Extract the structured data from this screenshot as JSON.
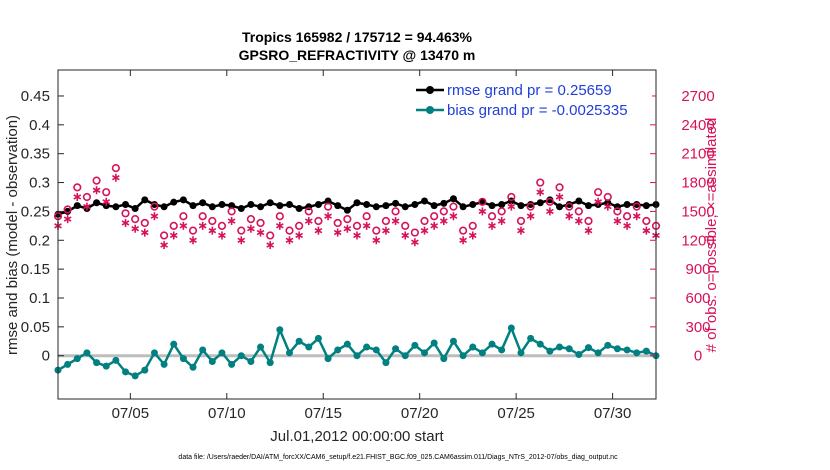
{
  "chart_data": {
    "type": "line",
    "title": [
      "Tropics 165982 / 175712 = 94.463%",
      "GPSRO_REFRACTIVITY @ 13470 m"
    ],
    "xlabel": "Jul.01,2012 00:00:00 start",
    "ylabel_left": "rmse and bias (model - observation)",
    "ylabel_right": "# of obs: o=possible; ×=assimilated",
    "footnote": "data file: /Users/raeder/DAI/ATM_forcXX/CAM6_setup/f.e21.FHIST_BGC.f09_025.CAM6assim.011/Diags_NTrS_2012-07/obs_diag_output.nc",
    "xlim": [
      0.75,
      31.75
    ],
    "ylim_left": [
      -0.075,
      0.495
    ],
    "ylim_right": [
      -450,
      2970
    ],
    "x_ticks": [
      {
        "value": 4.5,
        "label": "07/05"
      },
      {
        "value": 9.5,
        "label": "07/10"
      },
      {
        "value": 14.5,
        "label": "07/15"
      },
      {
        "value": 19.5,
        "label": "07/20"
      },
      {
        "value": 24.5,
        "label": "07/25"
      },
      {
        "value": 29.5,
        "label": "07/30"
      }
    ],
    "y_ticks_left": [
      {
        "value": 0,
        "label": "0"
      },
      {
        "value": 0.05,
        "label": "0.05"
      },
      {
        "value": 0.1,
        "label": "0.1"
      },
      {
        "value": 0.15,
        "label": "0.15"
      },
      {
        "value": 0.2,
        "label": "0.2"
      },
      {
        "value": 0.25,
        "label": "0.25"
      },
      {
        "value": 0.3,
        "label": "0.3"
      },
      {
        "value": 0.35,
        "label": "0.35"
      },
      {
        "value": 0.4,
        "label": "0.4"
      },
      {
        "value": 0.45,
        "label": "0.45"
      }
    ],
    "y_ticks_right": [
      {
        "value": 0,
        "label": "0"
      },
      {
        "value": 300,
        "label": "300"
      },
      {
        "value": 600,
        "label": "600"
      },
      {
        "value": 900,
        "label": "900"
      },
      {
        "value": 1200,
        "label": "1200"
      },
      {
        "value": 1500,
        "label": "1500"
      },
      {
        "value": 1800,
        "label": "1800"
      },
      {
        "value": 2100,
        "label": "2100"
      },
      {
        "value": 2400,
        "label": "2400"
      },
      {
        "value": 2700,
        "label": "2700"
      }
    ],
    "series": [
      {
        "name": "rmse",
        "legend": "rmse grand pr = 0.25659",
        "color": "#000000",
        "x": [
          0.75,
          1.25,
          1.75,
          2.25,
          2.75,
          3.25,
          3.75,
          4.25,
          4.75,
          5.25,
          5.75,
          6.25,
          6.75,
          7.25,
          7.75,
          8.25,
          8.75,
          9.25,
          9.75,
          10.25,
          10.75,
          11.25,
          11.75,
          12.25,
          12.75,
          13.25,
          13.75,
          14.25,
          14.75,
          15.25,
          15.75,
          16.25,
          16.75,
          17.25,
          17.75,
          18.25,
          18.75,
          19.25,
          19.75,
          20.25,
          20.75,
          21.25,
          21.75,
          22.25,
          22.75,
          23.25,
          23.75,
          24.25,
          24.75,
          25.25,
          25.75,
          26.25,
          26.75,
          27.25,
          27.75,
          28.25,
          28.75,
          29.25,
          29.75,
          30.25,
          30.75,
          31.25,
          31.75
        ],
        "values": [
          0.245,
          0.25,
          0.26,
          0.255,
          0.265,
          0.26,
          0.258,
          0.262,
          0.255,
          0.27,
          0.262,
          0.258,
          0.266,
          0.27,
          0.26,
          0.265,
          0.258,
          0.262,
          0.26,
          0.255,
          0.262,
          0.258,
          0.265,
          0.26,
          0.262,
          0.255,
          0.258,
          0.262,
          0.268,
          0.26,
          0.252,
          0.265,
          0.262,
          0.258,
          0.26,
          0.264,
          0.258,
          0.262,
          0.268,
          0.26,
          0.264,
          0.272,
          0.258,
          0.262,
          0.266,
          0.26,
          0.262,
          0.268,
          0.26,
          0.262,
          0.265,
          0.27,
          0.258,
          0.262,
          0.268,
          0.26,
          0.262,
          0.265,
          0.258,
          0.262,
          0.262,
          0.26,
          0.262
        ]
      },
      {
        "name": "bias",
        "legend": "bias grand pr = -0.0025335",
        "color": "#008080",
        "x": [
          0.75,
          1.25,
          1.75,
          2.25,
          2.75,
          3.25,
          3.75,
          4.25,
          4.75,
          5.25,
          5.75,
          6.25,
          6.75,
          7.25,
          7.75,
          8.25,
          8.75,
          9.25,
          9.75,
          10.25,
          10.75,
          11.25,
          11.75,
          12.25,
          12.75,
          13.25,
          13.75,
          14.25,
          14.75,
          15.25,
          15.75,
          16.25,
          16.75,
          17.25,
          17.75,
          18.25,
          18.75,
          19.25,
          19.75,
          20.25,
          20.75,
          21.25,
          21.75,
          22.25,
          22.75,
          23.25,
          23.75,
          24.25,
          24.75,
          25.25,
          25.75,
          26.25,
          26.75,
          27.25,
          27.75,
          28.25,
          28.75,
          29.25,
          29.75,
          30.25,
          30.75,
          31.25,
          31.75
        ],
        "values": [
          -0.025,
          -0.015,
          -0.005,
          0.005,
          -0.012,
          -0.018,
          -0.008,
          -0.028,
          -0.035,
          -0.025,
          0.005,
          -0.015,
          0.02,
          -0.005,
          -0.02,
          0.01,
          -0.01,
          0.005,
          -0.015,
          0.0,
          -0.01,
          0.015,
          -0.012,
          0.045,
          0.005,
          0.025,
          0.015,
          0.03,
          -0.005,
          0.01,
          0.02,
          0.0,
          0.015,
          0.01,
          -0.012,
          0.012,
          0.0,
          0.018,
          0.005,
          0.022,
          -0.005,
          0.025,
          0.0,
          0.015,
          0.005,
          0.02,
          0.01,
          0.048,
          0.005,
          0.03,
          0.02,
          0.008,
          0.015,
          0.012,
          0.002,
          0.014,
          0.005,
          0.018,
          0.012,
          0.01,
          0.005,
          0.008,
          0.0
        ]
      },
      {
        "name": "possible",
        "color": "#d6125a",
        "marker": "circle",
        "x": [
          0.75,
          1.25,
          1.75,
          2.25,
          2.75,
          3.25,
          3.75,
          4.25,
          4.75,
          5.25,
          5.75,
          6.25,
          6.75,
          7.25,
          7.75,
          8.25,
          8.75,
          9.25,
          9.75,
          10.25,
          10.75,
          11.25,
          11.75,
          12.25,
          12.75,
          13.25,
          13.75,
          14.25,
          14.75,
          15.25,
          15.75,
          16.25,
          16.75,
          17.25,
          17.75,
          18.25,
          18.75,
          19.25,
          19.75,
          20.25,
          20.75,
          21.25,
          21.75,
          22.25,
          22.75,
          23.25,
          23.75,
          24.25,
          24.75,
          25.25,
          25.75,
          26.25,
          26.75,
          27.25,
          27.75,
          28.25,
          28.75,
          29.25,
          29.75,
          30.25,
          30.75,
          31.25,
          31.75
        ],
        "values": [
          1450,
          1520,
          1750,
          1650,
          1820,
          1700,
          1950,
          1480,
          1420,
          1380,
          1550,
          1250,
          1350,
          1450,
          1300,
          1450,
          1400,
          1350,
          1500,
          1300,
          1420,
          1380,
          1250,
          1450,
          1300,
          1350,
          1500,
          1400,
          1550,
          1380,
          1420,
          1350,
          1450,
          1300,
          1400,
          1500,
          1350,
          1280,
          1400,
          1450,
          1500,
          1550,
          1300,
          1350,
          1600,
          1450,
          1500,
          1650,
          1400,
          1550,
          1800,
          1600,
          1750,
          1550,
          1500,
          1400,
          1700,
          1650,
          1500,
          1450,
          1550,
          1400,
          1350
        ]
      },
      {
        "name": "assimilated",
        "color": "#d6125a",
        "marker": "asterisk",
        "x": [
          0.75,
          1.25,
          1.75,
          2.25,
          2.75,
          3.25,
          3.75,
          4.25,
          4.75,
          5.25,
          5.75,
          6.25,
          6.75,
          7.25,
          7.75,
          8.25,
          8.75,
          9.25,
          9.75,
          10.25,
          10.75,
          11.25,
          11.75,
          12.25,
          12.75,
          13.25,
          13.75,
          14.25,
          14.75,
          15.25,
          15.75,
          16.25,
          16.75,
          17.25,
          17.75,
          18.25,
          18.75,
          19.25,
          19.75,
          20.25,
          20.75,
          21.25,
          21.75,
          22.25,
          22.75,
          23.25,
          23.75,
          24.25,
          24.75,
          25.25,
          25.75,
          26.25,
          26.75,
          27.25,
          27.75,
          28.25,
          28.75,
          29.25,
          29.75,
          30.25,
          30.75,
          31.25,
          31.75
        ],
        "values": [
          1350,
          1420,
          1650,
          1550,
          1720,
          1600,
          1850,
          1380,
          1320,
          1280,
          1450,
          1150,
          1250,
          1350,
          1200,
          1350,
          1300,
          1250,
          1400,
          1200,
          1320,
          1280,
          1150,
          1350,
          1200,
          1250,
          1400,
          1300,
          1450,
          1280,
          1320,
          1250,
          1350,
          1200,
          1300,
          1400,
          1250,
          1180,
          1300,
          1350,
          1400,
          1450,
          1200,
          1250,
          1500,
          1350,
          1400,
          1550,
          1300,
          1450,
          1700,
          1500,
          1650,
          1450,
          1400,
          1300,
          1600,
          1550,
          1400,
          1350,
          1450,
          1300,
          1250
        ]
      }
    ]
  }
}
